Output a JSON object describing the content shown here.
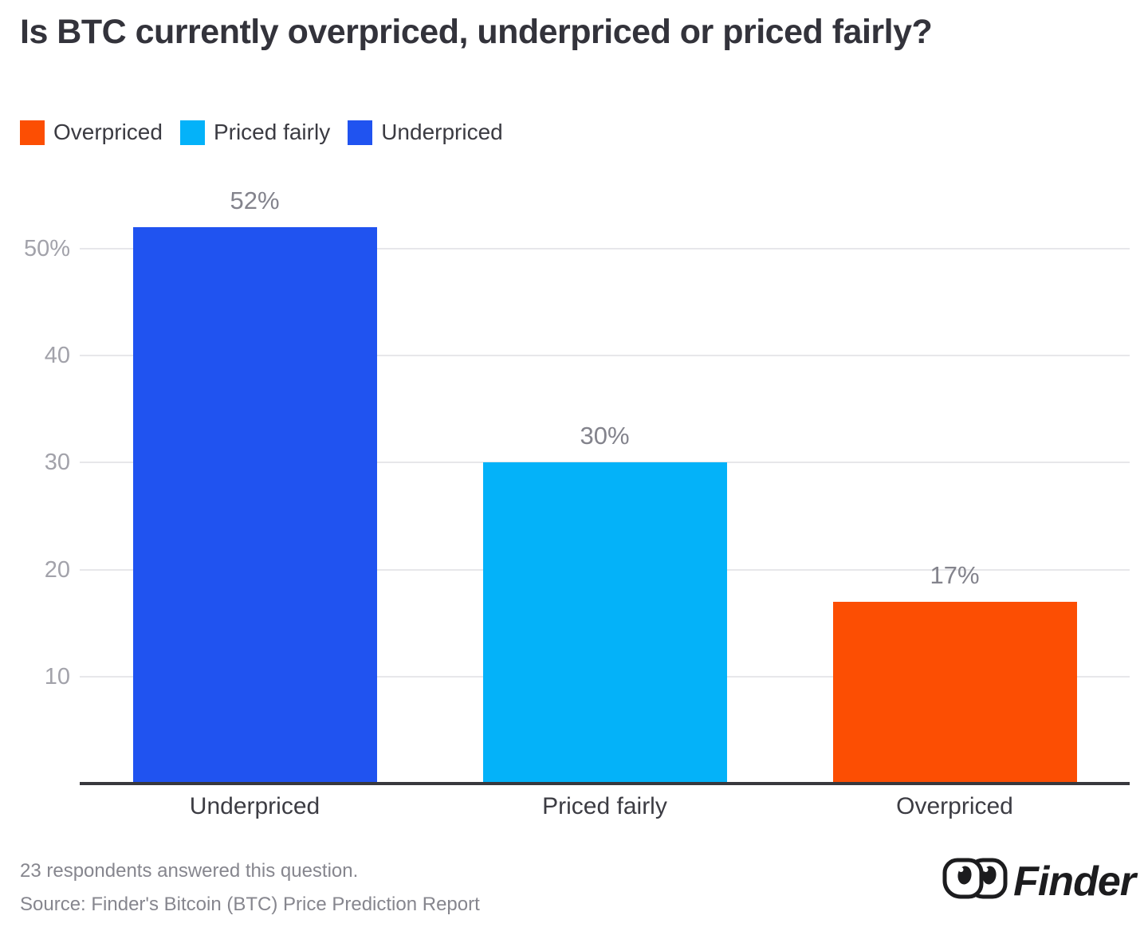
{
  "chart_data": {
    "type": "bar",
    "title": "Is BTC currently overpriced, underpriced or priced fairly?",
    "categories": [
      "Underpriced",
      "Priced fairly",
      "Overpriced"
    ],
    "values": [
      52,
      30,
      17
    ],
    "value_labels": [
      "52%",
      "30%",
      "17%"
    ],
    "bar_colors": [
      "#2053f0",
      "#04b2f9",
      "#fc4e03"
    ],
    "xlabel": "",
    "ylabel": "",
    "ylim": [
      0,
      55
    ],
    "grid": "horizontal",
    "yticks": [
      {
        "value": 50,
        "label": "50%"
      },
      {
        "value": 40,
        "label": "40"
      },
      {
        "value": 30,
        "label": "30"
      },
      {
        "value": 20,
        "label": "20"
      },
      {
        "value": 10,
        "label": "10"
      }
    ],
    "legend": {
      "position": "top-left",
      "entries": [
        {
          "label": "Overpriced",
          "color": "#fc4e03"
        },
        {
          "label": "Priced fairly",
          "color": "#04b2f9"
        },
        {
          "label": "Underpriced",
          "color": "#2053f0"
        }
      ]
    }
  },
  "footer": {
    "note": "23 respondents answered this question.",
    "source": "Source: Finder's Bitcoin (BTC) Price Prediction Report"
  },
  "logo": {
    "brand": "Finder"
  },
  "colors": {
    "underpriced_blue": "#2053f0",
    "priced_fairly_cyan": "#04b2f9",
    "overpriced_orange": "#fc4e03",
    "gridline": "#e7e7ea",
    "axis_line": "#38383d",
    "title_text": "#33333b",
    "muted_text": "#86868e"
  }
}
